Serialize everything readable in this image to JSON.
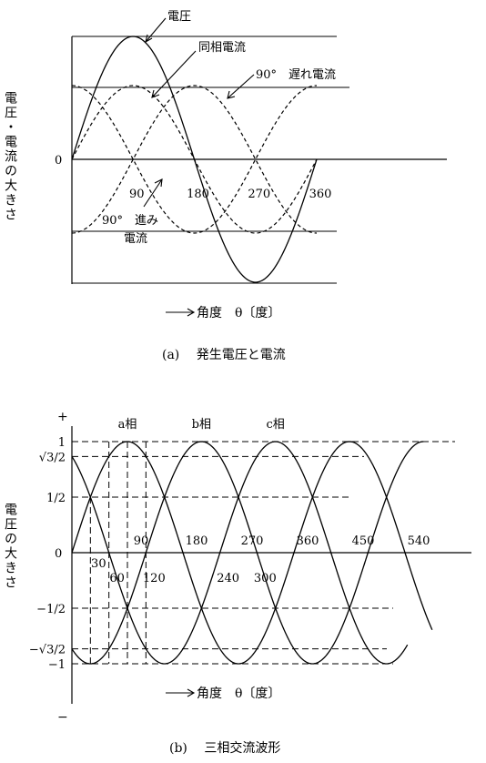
{
  "chart_data": [
    {
      "type": "line",
      "caption": "(a)　 発生電圧と電流",
      "ylabel": "電圧・電流の大きさ",
      "xlabel": "角度　θ〔度〕",
      "zero_label": "0",
      "x_ticks": [
        90,
        180,
        270,
        360
      ],
      "xlim": [
        0,
        360
      ],
      "series": [
        {
          "name": "電圧",
          "amplitude": 1.0,
          "phase_deg": 0,
          "style": "solid"
        },
        {
          "name": "同相電流",
          "amplitude": 0.6,
          "phase_deg": 0,
          "style": "dashed"
        },
        {
          "name": "90°　遅れ電流",
          "amplitude": 0.6,
          "phase_deg": -90,
          "style": "dashed"
        },
        {
          "name": "90°　進み電流",
          "amplitude": 0.6,
          "phase_deg": 90,
          "style": "dashed"
        }
      ],
      "annotations": {
        "voltage": "電圧",
        "inphase": "同相電流",
        "lag": "90°　遅れ電流",
        "lead_line1": "90°　進み",
        "lead_line2": "電流"
      }
    },
    {
      "type": "line",
      "caption": "(b)　 三相交流波形",
      "ylabel": "電圧の大きさ",
      "xlabel": "角度　θ〔度〕",
      "plus_label": "+",
      "minus_label": "−",
      "xlim": [
        0,
        600
      ],
      "x_ticks_above": [
        90,
        180,
        270,
        360,
        450,
        540
      ],
      "x_ticks_below": [
        30,
        60,
        120,
        240,
        300
      ],
      "zero_label": "0",
      "y_ticks": [
        {
          "label": "1",
          "value": 1.0
        },
        {
          "label": "√3/2",
          "value": 0.866
        },
        {
          "label": "1/2",
          "value": 0.5
        },
        {
          "label": "−1/2",
          "value": -0.5
        },
        {
          "label": "−√3/2",
          "value": -0.866
        },
        {
          "label": "−1",
          "value": -1.0
        }
      ],
      "series": [
        {
          "name": "a相",
          "amplitude": 1.0,
          "phase_deg": 0
        },
        {
          "name": "b相",
          "amplitude": 1.0,
          "phase_deg": -120
        },
        {
          "name": "c相",
          "amplitude": 1.0,
          "phase_deg": -240
        }
      ]
    }
  ]
}
